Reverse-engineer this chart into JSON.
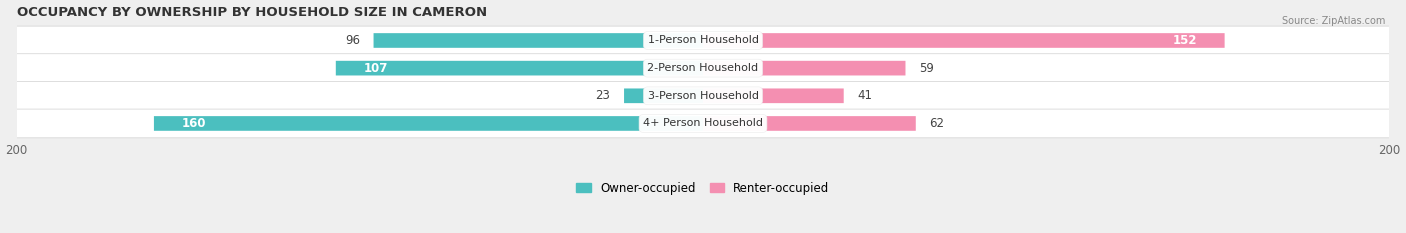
{
  "title": "OCCUPANCY BY OWNERSHIP BY HOUSEHOLD SIZE IN CAMERON",
  "source": "Source: ZipAtlas.com",
  "categories": [
    "1-Person Household",
    "2-Person Household",
    "3-Person Household",
    "4+ Person Household"
  ],
  "owner_values": [
    96,
    107,
    23,
    160
  ],
  "renter_values": [
    152,
    59,
    41,
    62
  ],
  "owner_color": "#4BBFBF",
  "renter_color": "#F48FB1",
  "axis_max": 200,
  "bg_color": "#efefef",
  "row_bg_color": "#ffffff",
  "title_fontsize": 9.5,
  "label_fontsize": 8.5,
  "tick_fontsize": 8.5,
  "legend_owner": "Owner-occupied",
  "legend_renter": "Renter-occupied"
}
